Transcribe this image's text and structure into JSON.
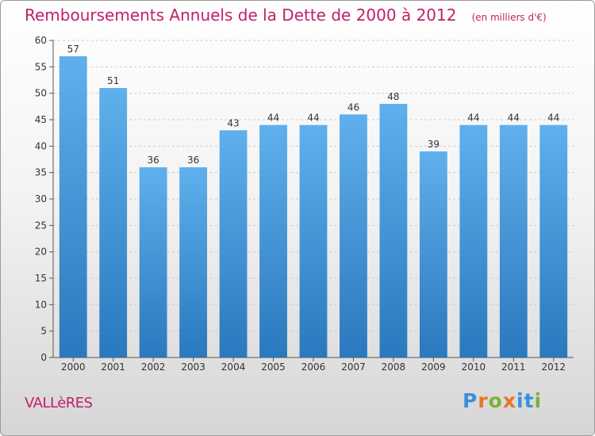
{
  "title": "Remboursements Annuels de la Dette de 2000 à 2012",
  "subtitle": "(en milliers d'€)",
  "commune": "VALLèRES",
  "logo": {
    "text": "Proxiti",
    "letters": [
      "P",
      "r",
      "o",
      "x",
      "i",
      "t",
      "i"
    ],
    "colors": [
      "#3a8fd8",
      "#e8742a",
      "#7ab03a",
      "#e8742a",
      "#3a8fd8",
      "#3a8fd8",
      "#7ab03a"
    ]
  },
  "colors": {
    "bar_top": "#5fb0ec",
    "bar_bottom": "#2a78be",
    "title": "#c0206a",
    "axis": "#555555",
    "grid": "#cccccc"
  },
  "chart_data": {
    "type": "bar",
    "title": "Remboursements Annuels de la Dette de 2000 à 2012",
    "subtitle": "(en milliers d'€)",
    "categories": [
      "2000",
      "2001",
      "2002",
      "2003",
      "2004",
      "2005",
      "2006",
      "2007",
      "2008",
      "2009",
      "2010",
      "2011",
      "2012"
    ],
    "values": [
      57,
      51,
      36,
      36,
      43,
      44,
      44,
      46,
      48,
      39,
      44,
      44,
      44
    ],
    "ylim": [
      0,
      60
    ],
    "yticks": [
      0,
      5,
      10,
      15,
      20,
      25,
      30,
      35,
      40,
      45,
      50,
      55,
      60
    ],
    "grid": true,
    "xlabel": "",
    "ylabel": ""
  }
}
